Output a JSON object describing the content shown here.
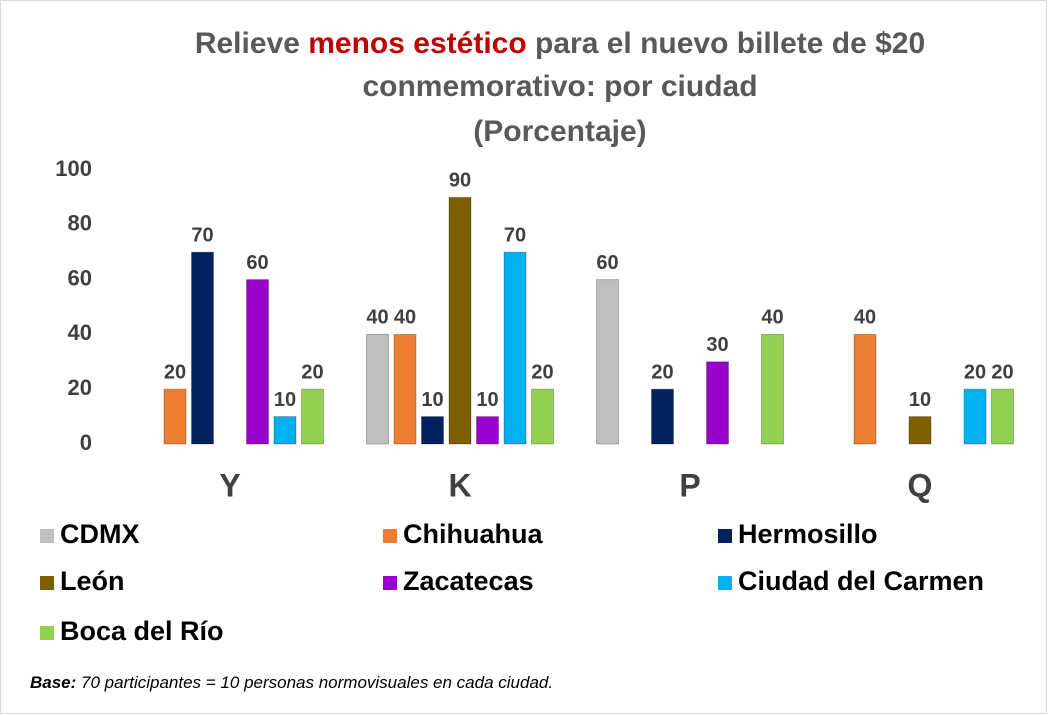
{
  "chart_data": {
    "type": "bar",
    "title_lines": [
      [
        "Relieve ",
        "menos estético",
        " para el nuevo billete de $20"
      ],
      [
        "conmemorativo: por ciudad"
      ],
      [
        "(Porcentaje)"
      ]
    ],
    "categories": [
      "Y",
      "K",
      "P",
      "Q"
    ],
    "series": [
      {
        "name": "CDMX",
        "color": "#bfbfbf",
        "values": [
          null,
          40,
          60,
          null
        ]
      },
      {
        "name": "Chihuahua",
        "color": "#ed7d31",
        "values": [
          20,
          40,
          null,
          40
        ]
      },
      {
        "name": "Hermosillo",
        "color": "#002060",
        "values": [
          70,
          10,
          20,
          null
        ]
      },
      {
        "name": "León",
        "color": "#7f6000",
        "values": [
          null,
          90,
          null,
          10
        ]
      },
      {
        "name": "Zacatecas",
        "color": "#9900cc",
        "values": [
          60,
          10,
          30,
          null
        ]
      },
      {
        "name": "Ciudad del Carmen",
        "color": "#00b0f0",
        "values": [
          10,
          70,
          null,
          20
        ]
      },
      {
        "name": "Boca del Río",
        "color": "#92d050",
        "values": [
          20,
          20,
          40,
          20
        ]
      }
    ],
    "ylim": [
      0,
      100
    ],
    "yticks": [
      0,
      20,
      40,
      60,
      80,
      100
    ],
    "grid": false,
    "note": {
      "label": "Base:",
      "text": " 70 participantes = 10 personas normovisuales en cada ciudad."
    }
  }
}
